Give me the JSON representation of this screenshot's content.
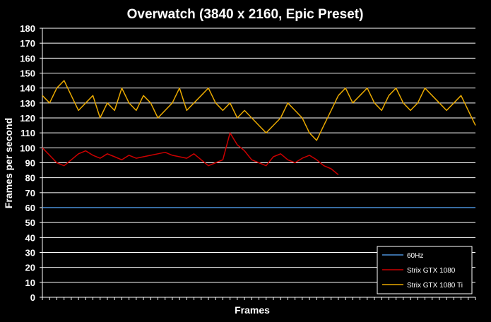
{
  "chart_data": {
    "type": "line",
    "title": "Overwatch (3840 x 2160, Epic Preset)",
    "xlabel": "Frames",
    "ylabel": "Frames per second",
    "ylim": [
      0,
      180
    ],
    "yticks": [
      0,
      10,
      20,
      30,
      40,
      50,
      60,
      70,
      80,
      90,
      100,
      110,
      120,
      130,
      140,
      150,
      160,
      170,
      180
    ],
    "grid": true,
    "legend_position": "bottom-right",
    "x": [
      0,
      10,
      20,
      30,
      40,
      50,
      60,
      70,
      80,
      90,
      100,
      110,
      120,
      130,
      140,
      150,
      160,
      170,
      180,
      190,
      200,
      210,
      220,
      230,
      240,
      250,
      260,
      270,
      280,
      290,
      300,
      310,
      320,
      330,
      340,
      350,
      360,
      370,
      380,
      390,
      400,
      410,
      420,
      430,
      440,
      450,
      460,
      470,
      480,
      490,
      500,
      510,
      520,
      530,
      540,
      550,
      560,
      570,
      580,
      590,
      600
    ],
    "series": [
      {
        "name": "60Hz",
        "color": "#4a8fd8",
        "values": [
          60,
          60,
          60,
          60,
          60,
          60,
          60,
          60,
          60,
          60,
          60,
          60,
          60,
          60,
          60,
          60,
          60,
          60,
          60,
          60,
          60,
          60,
          60,
          60,
          60,
          60,
          60,
          60,
          60,
          60,
          60,
          60,
          60,
          60,
          60,
          60,
          60,
          60,
          60,
          60,
          60,
          60,
          60,
          60,
          60,
          60,
          60,
          60,
          60,
          60,
          60,
          60,
          60,
          60,
          60,
          60,
          60,
          60,
          60,
          60,
          60
        ]
      },
      {
        "name": "Strix GTX 1080",
        "color": "#cc0000",
        "values": [
          100,
          95,
          90,
          88,
          92,
          96,
          98,
          95,
          93,
          96,
          94,
          92,
          95,
          93,
          94,
          95,
          96,
          97,
          95,
          94,
          93,
          96,
          92,
          88,
          90,
          92,
          110,
          102,
          98,
          92,
          90,
          88,
          94,
          96,
          92,
          90,
          93,
          95,
          92,
          88,
          86,
          82,
          null,
          null,
          null,
          null,
          null,
          null,
          null,
          null,
          null,
          null,
          null,
          null,
          null,
          null,
          null,
          null,
          null,
          null,
          null
        ]
      },
      {
        "name": "Strix GTX 1080 Ti",
        "color": "#e8a800",
        "values": [
          135,
          130,
          140,
          145,
          135,
          125,
          130,
          135,
          120,
          130,
          125,
          140,
          130,
          125,
          135,
          130,
          120,
          125,
          130,
          140,
          125,
          130,
          135,
          140,
          130,
          125,
          130,
          120,
          125,
          120,
          115,
          110,
          115,
          120,
          130,
          125,
          120,
          110,
          105,
          115,
          125,
          135,
          140,
          130,
          135,
          140,
          130,
          125,
          135,
          140,
          130,
          125,
          130,
          140,
          135,
          130,
          125,
          130,
          135,
          125,
          115
        ]
      }
    ]
  }
}
